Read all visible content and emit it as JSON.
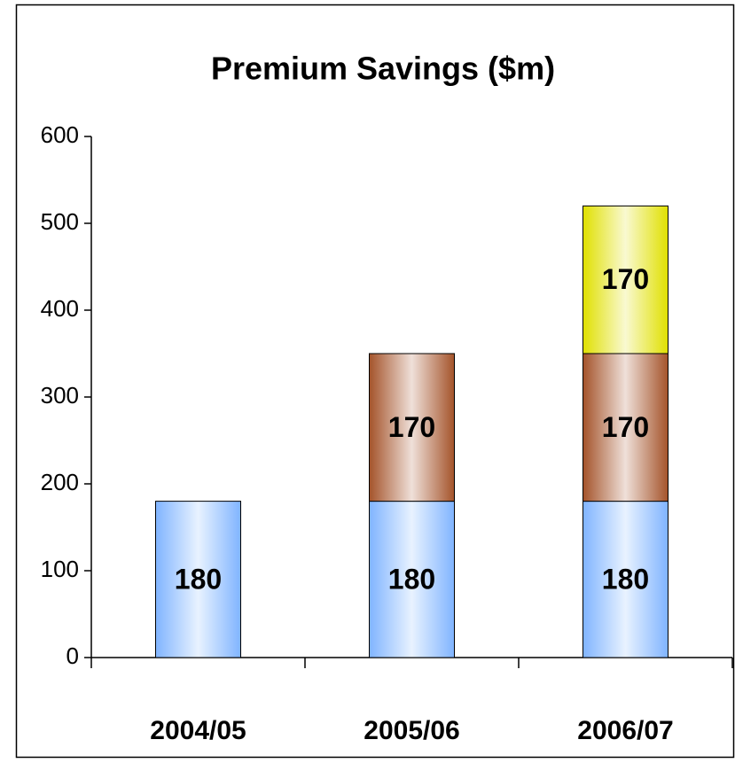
{
  "chart_data": {
    "type": "bar",
    "stacked": true,
    "title": "Premium Savings ($m)",
    "categories": [
      "2004/05",
      "2005/06",
      "2006/07"
    ],
    "series": [
      {
        "color": "#80b4ff",
        "values": [
          180,
          180,
          180
        ]
      },
      {
        "color": "#a4532a",
        "values": [
          null,
          170,
          170
        ]
      },
      {
        "color": "#e0e000",
        "values": [
          null,
          null,
          170
        ]
      }
    ],
    "ylim": [
      0,
      600
    ],
    "yticks": [
      0,
      100,
      200,
      300,
      400,
      500,
      600
    ],
    "grid": false
  }
}
